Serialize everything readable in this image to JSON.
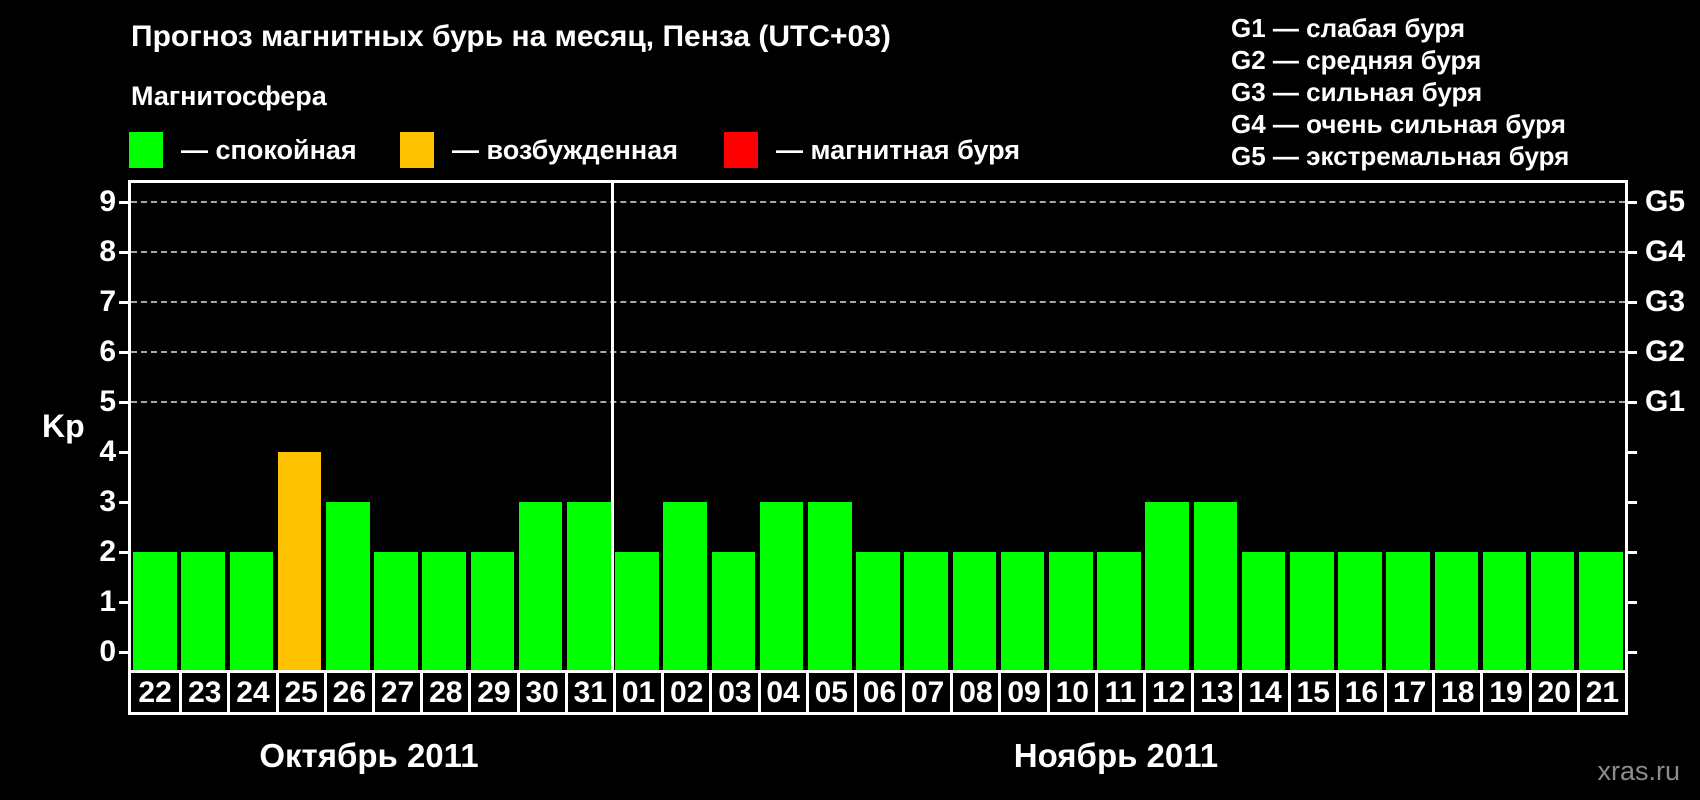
{
  "title": "Прогноз магнитных бурь на месяц, Пенза (UTC+03)",
  "magnetosphere_legend": {
    "heading": "Магнитосфера",
    "items": [
      {
        "key": "quiet",
        "label": "— спокойная",
        "color": "#00ff00"
      },
      {
        "key": "excited",
        "label": "— возбужденная",
        "color": "#ffc200"
      },
      {
        "key": "storm",
        "label": "— магнитная буря",
        "color": "#ff0000"
      }
    ]
  },
  "storm_scale_legend": {
    "items": [
      "G1 — слабая буря",
      "G2 — средняя буря",
      "G3 — сильная буря",
      "G4 — очень сильная буря",
      "G5 — экстремальная буря"
    ]
  },
  "watermark": "xras.ru",
  "chart_data": {
    "type": "bar",
    "title": "Прогноз магнитных бурь на месяц, Пенза (UTC+03)",
    "ylabel": "Kp",
    "ylim": [
      0,
      9
    ],
    "yticks": [
      0,
      1,
      2,
      3,
      4,
      5,
      6,
      7,
      8,
      9
    ],
    "grid_at_kp": [
      5,
      6,
      7,
      8,
      9
    ],
    "grid_on": true,
    "legend_position": "top-left",
    "right_axis": [
      {
        "label": "G1",
        "kp": 5
      },
      {
        "label": "G2",
        "kp": 6
      },
      {
        "label": "G3",
        "kp": 7
      },
      {
        "label": "G4",
        "kp": 8
      },
      {
        "label": "G5",
        "kp": 9
      }
    ],
    "state_colors": {
      "quiet": "#00ff00",
      "excited": "#ffc200",
      "storm": "#ff0000"
    },
    "months": [
      {
        "label": "Октябрь 2011",
        "days": [
          {
            "d": "22",
            "kp": 2,
            "state": "quiet"
          },
          {
            "d": "23",
            "kp": 2,
            "state": "quiet"
          },
          {
            "d": "24",
            "kp": 2,
            "state": "quiet"
          },
          {
            "d": "25",
            "kp": 4,
            "state": "excited"
          },
          {
            "d": "26",
            "kp": 3,
            "state": "quiet"
          },
          {
            "d": "27",
            "kp": 2,
            "state": "quiet"
          },
          {
            "d": "28",
            "kp": 2,
            "state": "quiet"
          },
          {
            "d": "29",
            "kp": 2,
            "state": "quiet"
          },
          {
            "d": "30",
            "kp": 3,
            "state": "quiet"
          },
          {
            "d": "31",
            "kp": 3,
            "state": "quiet"
          }
        ]
      },
      {
        "label": "Ноябрь 2011",
        "days": [
          {
            "d": "01",
            "kp": 2,
            "state": "quiet"
          },
          {
            "d": "02",
            "kp": 3,
            "state": "quiet"
          },
          {
            "d": "03",
            "kp": 2,
            "state": "quiet"
          },
          {
            "d": "04",
            "kp": 3,
            "state": "quiet"
          },
          {
            "d": "05",
            "kp": 3,
            "state": "quiet"
          },
          {
            "d": "06",
            "kp": 2,
            "state": "quiet"
          },
          {
            "d": "07",
            "kp": 2,
            "state": "quiet"
          },
          {
            "d": "08",
            "kp": 2,
            "state": "quiet"
          },
          {
            "d": "09",
            "kp": 2,
            "state": "quiet"
          },
          {
            "d": "10",
            "kp": 2,
            "state": "quiet"
          },
          {
            "d": "11",
            "kp": 2,
            "state": "quiet"
          },
          {
            "d": "12",
            "kp": 3,
            "state": "quiet"
          },
          {
            "d": "13",
            "kp": 3,
            "state": "quiet"
          },
          {
            "d": "14",
            "kp": 2,
            "state": "quiet"
          },
          {
            "d": "15",
            "kp": 2,
            "state": "quiet"
          },
          {
            "d": "16",
            "kp": 2,
            "state": "quiet"
          },
          {
            "d": "17",
            "kp": 2,
            "state": "quiet"
          },
          {
            "d": "18",
            "kp": 2,
            "state": "quiet"
          },
          {
            "d": "19",
            "kp": 2,
            "state": "quiet"
          },
          {
            "d": "20",
            "kp": 2,
            "state": "quiet"
          },
          {
            "d": "21",
            "kp": 2,
            "state": "quiet"
          }
        ]
      }
    ]
  }
}
